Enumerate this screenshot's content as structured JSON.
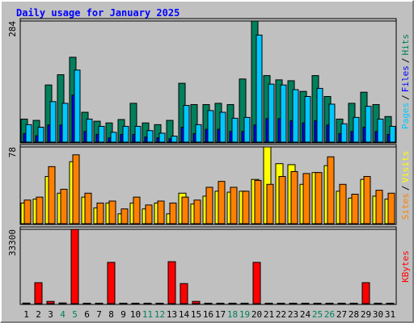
{
  "chart_data": [
    {
      "type": "bar",
      "title": "Daily usage for January 2025",
      "ylim": [
        0,
        284
      ],
      "yticks": [
        284
      ],
      "legend_separator": "/",
      "series": [
        {
          "name": "Hits",
          "color": "#00805c",
          "values": [
            54,
            51,
            134,
            158,
            199,
            70,
            49,
            45,
            53,
            91,
            45,
            41,
            51,
            138,
            88,
            88,
            91,
            88,
            148,
            284,
            156,
            146,
            144,
            119,
            156,
            107,
            54,
            91,
            117,
            88,
            60
          ]
        },
        {
          "name": "Files",
          "color": "#0000ff",
          "values": [
            20,
            15,
            40,
            40,
            110,
            25,
            18,
            10,
            18,
            18,
            12,
            10,
            8,
            35,
            20,
            30,
            30,
            25,
            25,
            40,
            55,
            55,
            50,
            45,
            50,
            40,
            20,
            25,
            35,
            25,
            18
          ]
        },
        {
          "name": "Pages",
          "color": "#00c8ff",
          "values": [
            41,
            35,
            95,
            91,
            169,
            54,
            37,
            23,
            37,
            37,
            27,
            21,
            14,
            86,
            41,
            74,
            70,
            56,
            58,
            251,
            136,
            134,
            123,
            107,
            126,
            89,
            43,
            58,
            84,
            54,
            37
          ]
        }
      ]
    },
    {
      "type": "bar",
      "ylim": [
        0,
        78
      ],
      "yticks": [
        78
      ],
      "legend_separator": "/",
      "series": [
        {
          "name": "Visits",
          "color": "#ffff00",
          "values": [
            21,
            25,
            48,
            31,
            63,
            27,
            16,
            21,
            10,
            21,
            15,
            21,
            10,
            31,
            20,
            28,
            33,
            32,
            33,
            45,
            78,
            61,
            60,
            40,
            52,
            59,
            33,
            26,
            45,
            28,
            25
          ]
        },
        {
          "name": "Sites",
          "color": "#ff8000",
          "values": [
            24,
            27,
            58,
            35,
            70,
            31,
            21,
            23,
            15,
            27,
            19,
            23,
            21,
            27,
            24,
            37,
            43,
            37,
            33,
            44,
            40,
            48,
            53,
            51,
            52,
            68,
            40,
            30,
            48,
            34,
            31
          ]
        }
      ]
    },
    {
      "type": "bar",
      "ylim": [
        0,
        33300
      ],
      "yticks": [
        33300
      ],
      "categories": [
        "1",
        "2",
        "3",
        "4",
        "5",
        "6",
        "7",
        "8",
        "9",
        "10",
        "11",
        "12",
        "13",
        "14",
        "15",
        "16",
        "17",
        "18",
        "19",
        "20",
        "21",
        "22",
        "23",
        "24",
        "25",
        "26",
        "27",
        "28",
        "29",
        "30",
        "31"
      ],
      "category_colors": [
        "#000000",
        "#000000",
        "#000000",
        "#00805c",
        "#00805c",
        "#000000",
        "#000000",
        "#000000",
        "#000000",
        "#000000",
        "#00805c",
        "#00805c",
        "#000000",
        "#000000",
        "#000000",
        "#000000",
        "#000000",
        "#00805c",
        "#00805c",
        "#000000",
        "#000000",
        "#000000",
        "#000000",
        "#000000",
        "#00805c",
        "#00805c",
        "#000000",
        "#000000",
        "#000000",
        "#000000",
        "#000000"
      ],
      "series": [
        {
          "name": "KBytes",
          "color": "#ff0000",
          "values": [
            250,
            9400,
            1000,
            300,
            33300,
            200,
            200,
            18500,
            200,
            200,
            200,
            200,
            18800,
            9000,
            1000,
            200,
            200,
            200,
            200,
            18500,
            200,
            200,
            200,
            200,
            200,
            200,
            200,
            200,
            9400,
            200,
            200
          ]
        }
      ]
    }
  ]
}
